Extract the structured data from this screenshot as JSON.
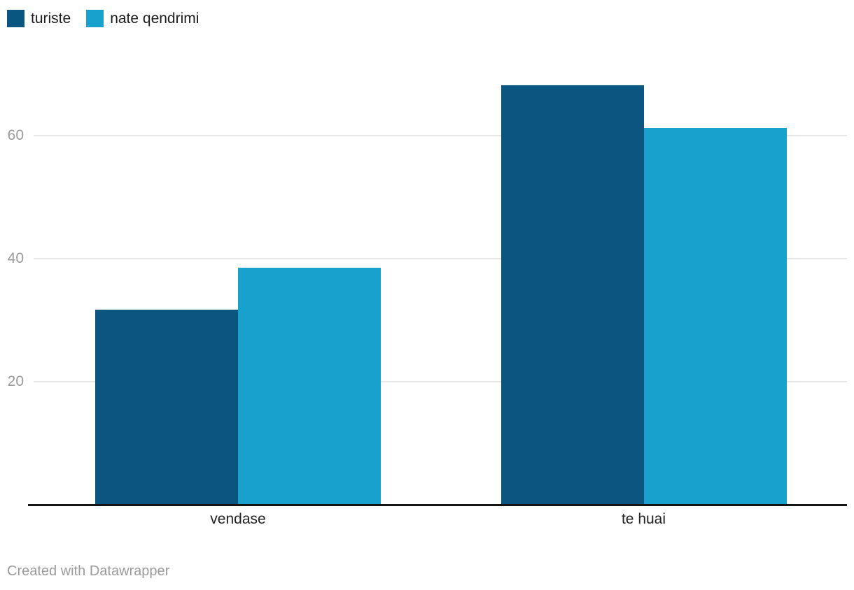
{
  "legend": {
    "items": [
      {
        "label": "turiste",
        "color": "#0a5680"
      },
      {
        "label": "nate qendrimi",
        "color": "#18a1cd"
      }
    ]
  },
  "chart_data": {
    "type": "bar",
    "categories": [
      "vendase",
      "te huai"
    ],
    "series": [
      {
        "name": "turiste",
        "color": "#0a5680",
        "values": [
          31.7,
          68.2
        ]
      },
      {
        "name": "nate qendrimi",
        "color": "#18a1cd",
        "values": [
          38.5,
          61.3
        ]
      }
    ],
    "title": "",
    "xlabel": "",
    "ylabel": "",
    "yticks": [
      20,
      40,
      60
    ],
    "ylim": [
      0,
      77
    ],
    "grid": true,
    "legend_position": "top-left"
  },
  "footer": {
    "credit": "Created with Datawrapper"
  },
  "colors": {
    "grid": "#e7e7e7",
    "axis": "#141414",
    "tick_label": "#9b9b9b",
    "category_label": "#222222",
    "footer_text": "#9b9b9b"
  }
}
